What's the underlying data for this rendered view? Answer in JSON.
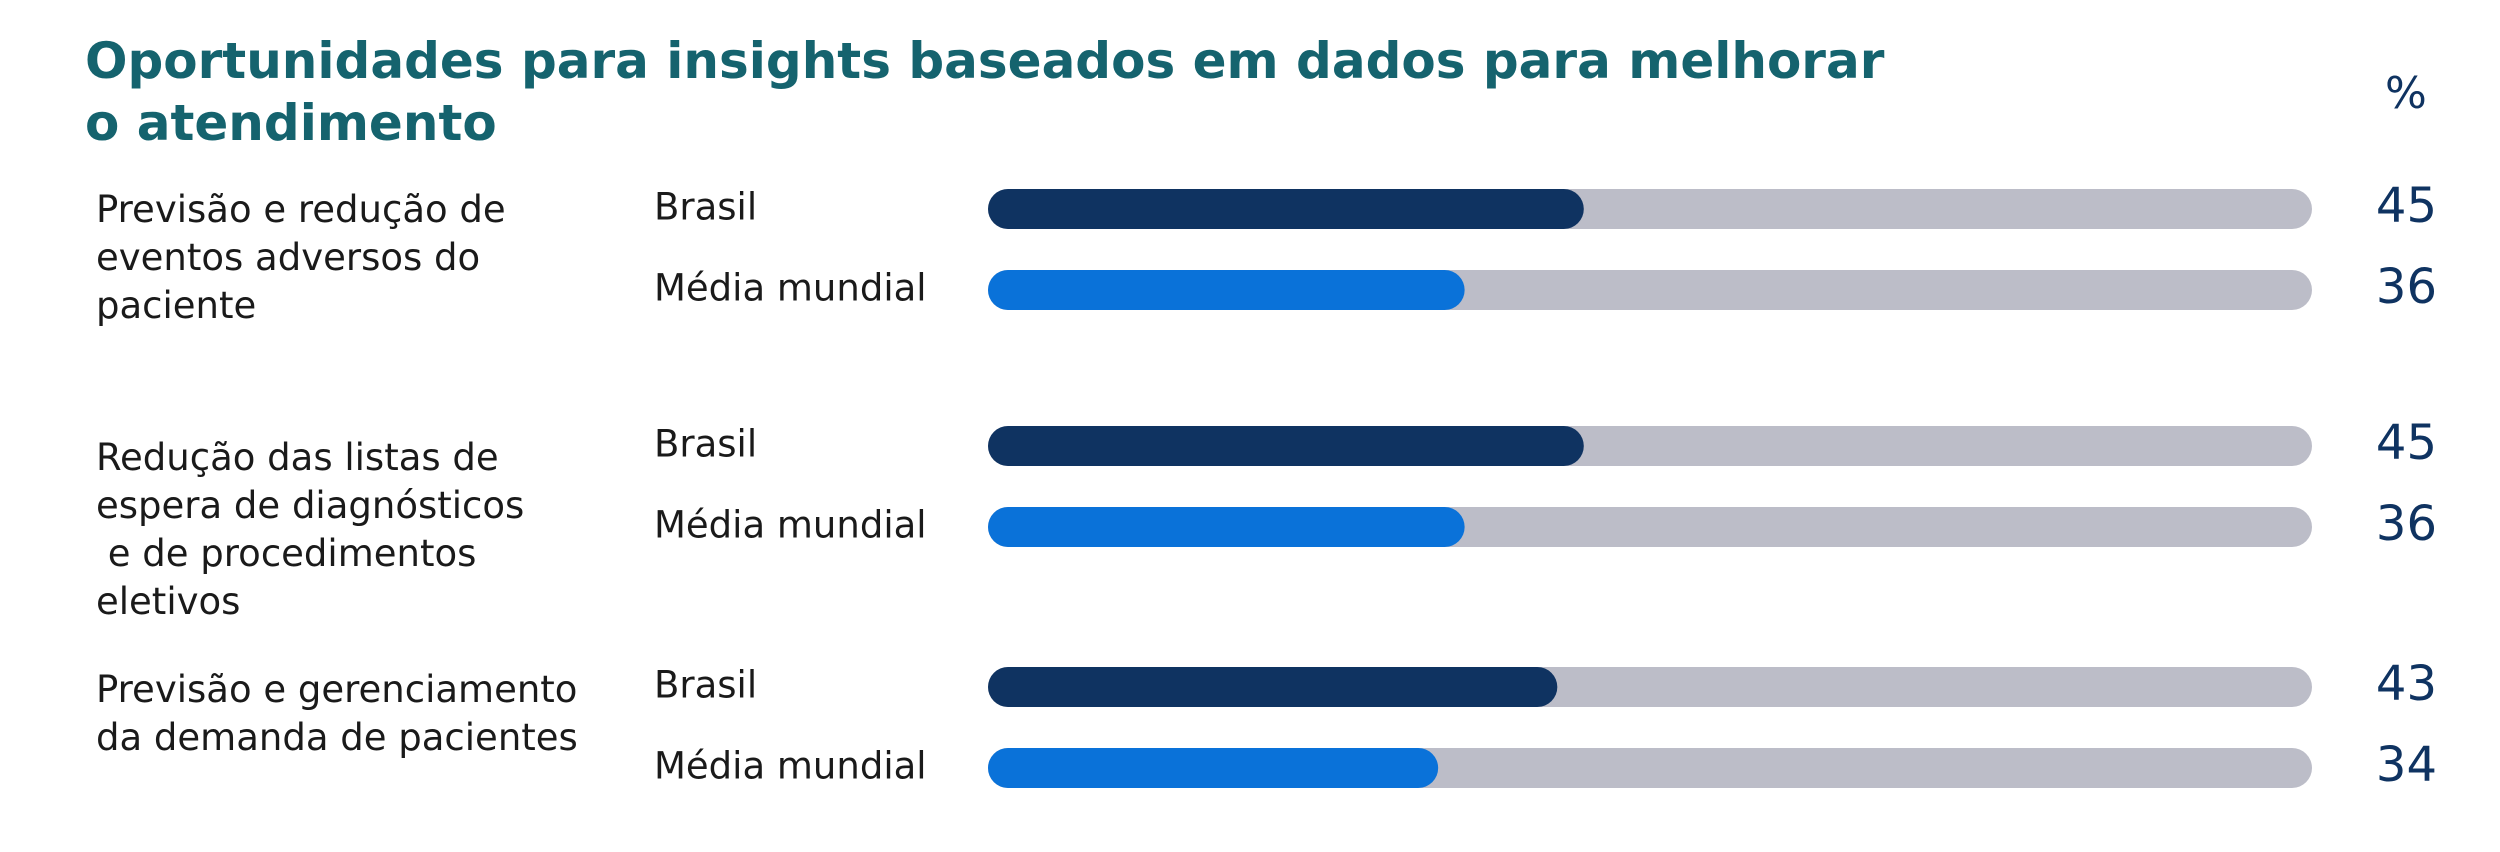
{
  "chart_data": {
    "type": "bar",
    "orientation": "horizontal",
    "title": "Oportunidades para insights baseados em dados para melhorar o atendimento",
    "value_axis_label": "%",
    "categories": [
      "Previsão e redução de\neventos adversos do\npaciente",
      "Redução das listas de\nespera de diagnósticos\n e de procedimentos\neletivos",
      "Previsão e gerenciamento\nda demanda de pacientes"
    ],
    "series": [
      {
        "name": "Brasil",
        "color": "#0f3361",
        "values": [
          45,
          45,
          43
        ]
      },
      {
        "name": "Média mundial",
        "color": "#0a72d9",
        "values": [
          36,
          36,
          34
        ]
      }
    ],
    "track_color": "#bcbdc8",
    "xlim": [
      0,
      100
    ]
  }
}
